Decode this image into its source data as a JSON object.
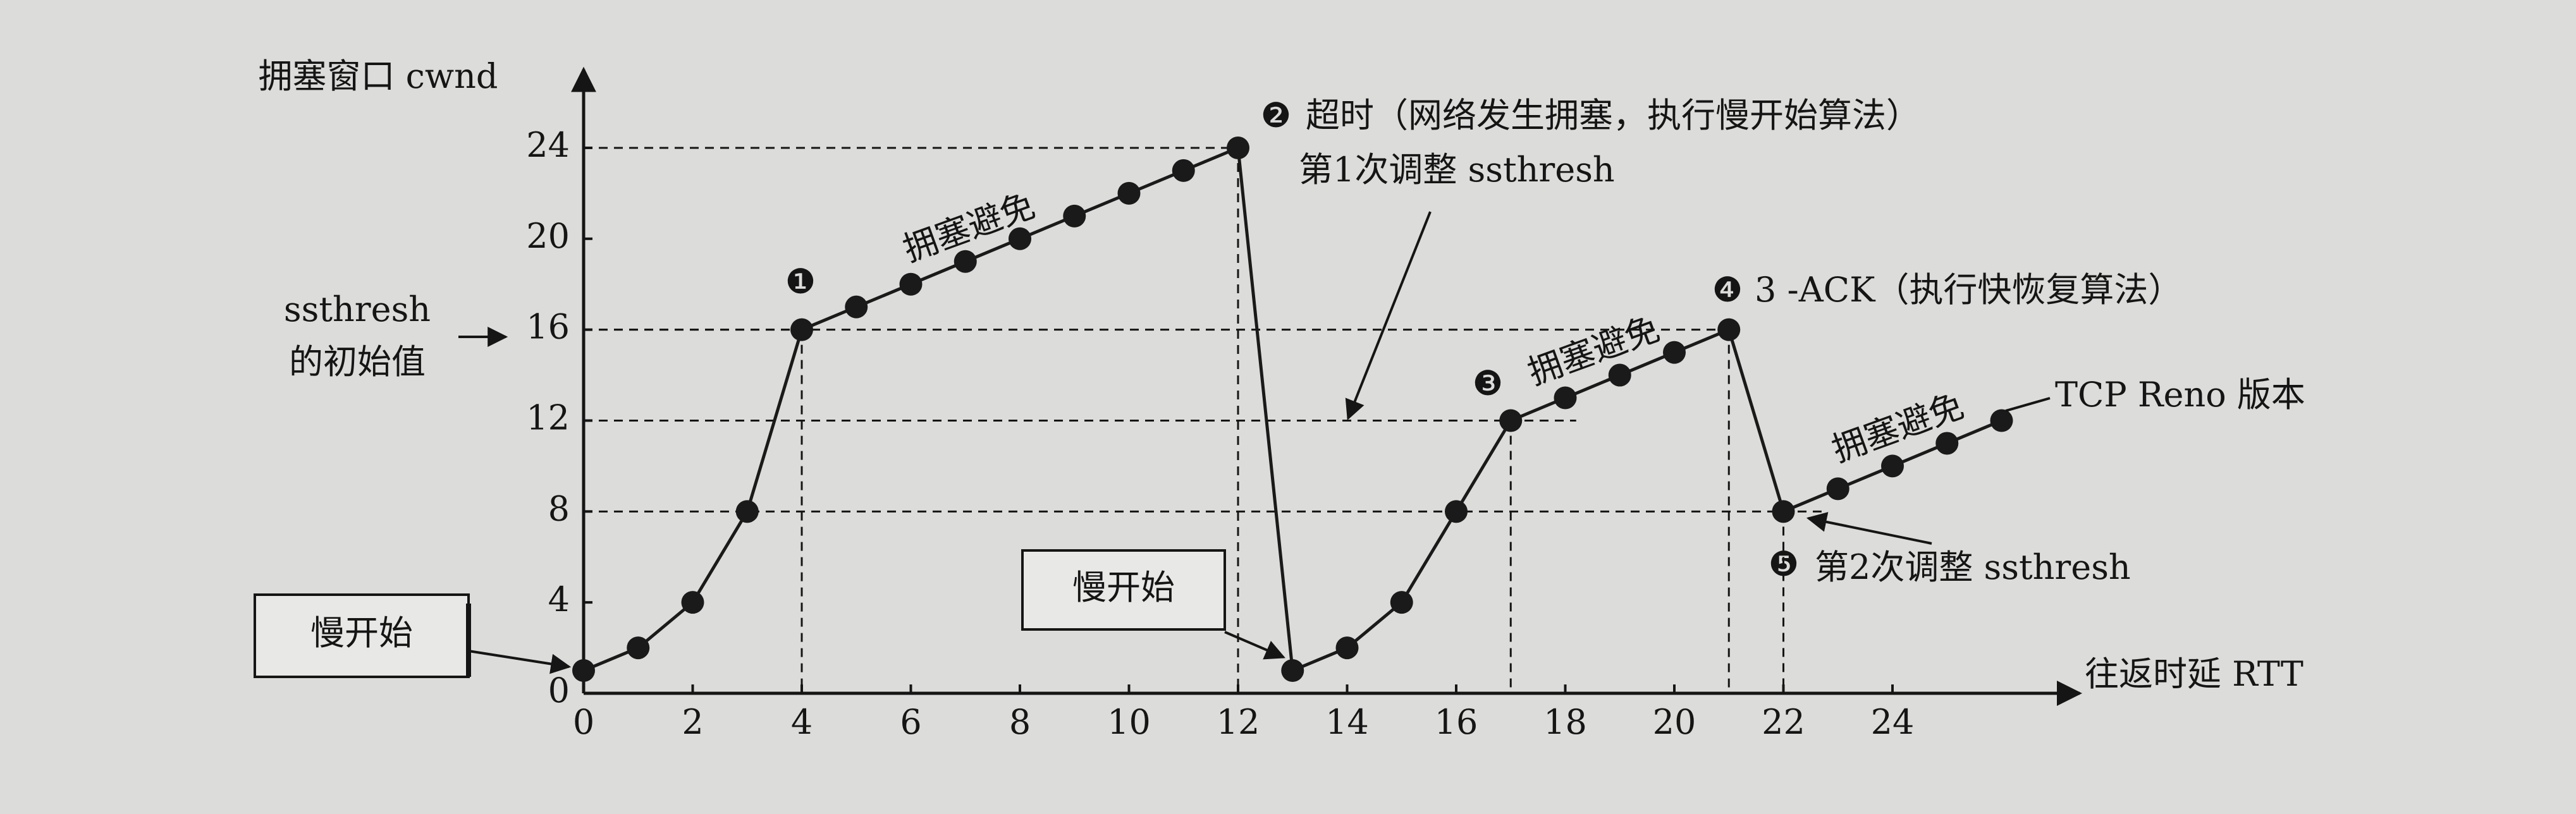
{
  "chart_data": {
    "type": "line",
    "x_label": "往返时延 RTT",
    "y_label": "拥塞窗口 cwnd",
    "x": [
      0,
      1,
      2,
      3,
      4,
      5,
      6,
      7,
      8,
      9,
      10,
      11,
      12,
      13,
      14,
      15,
      16,
      17,
      18,
      19,
      20,
      21,
      22,
      23,
      24,
      25,
      26
    ],
    "series": [
      {
        "color": "#1a1a1a",
        "values": [
          1,
          2,
          4,
          8,
          16,
          17,
          18,
          19,
          20,
          21,
          22,
          23,
          24,
          1,
          2,
          4,
          8,
          12,
          13,
          14,
          15,
          16,
          8,
          9,
          10,
          11,
          12
        ]
      }
    ],
    "xlim": [
      0,
      27.2
    ],
    "ylim": [
      0,
      26.9
    ],
    "xticks": [
      0,
      2,
      4,
      6,
      8,
      10,
      12,
      14,
      16,
      18,
      20,
      22,
      24
    ],
    "yticks": [
      0,
      4,
      8,
      12,
      16,
      20,
      24
    ],
    "annotations": [
      "❶",
      "❷",
      "超时（网络发生拥塞，执行慢开始算法）",
      "第1次调整 ssthresh",
      "拥塞避免",
      "ssthresh",
      "的初始值",
      "慢开始",
      "慢开始",
      "❸",
      "拥塞避免",
      "❹",
      "3 -ACK（执行快恢复算法）",
      "拥塞避免",
      "TCP Reno 版本",
      "❺",
      "第2次调整 ssthresh"
    ]
  }
}
